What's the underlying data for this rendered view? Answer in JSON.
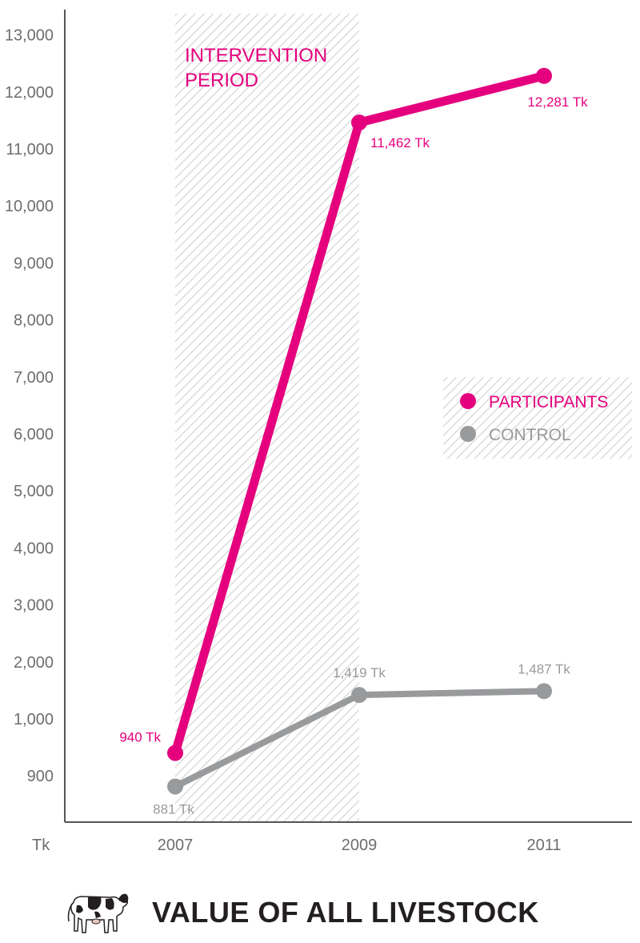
{
  "chart_data": {
    "type": "line",
    "title": "VALUE OF ALL LIVESTOCK",
    "ylabel": "Tk",
    "categories": [
      "2007",
      "2009",
      "2011"
    ],
    "yticks": [
      "13,000",
      "12,000",
      "11,000",
      "10,000",
      "9,000",
      "8,000",
      "7,000",
      "6,000",
      "5,000",
      "4,000",
      "3,000",
      "2,000",
      "1,000",
      "900"
    ],
    "shaded_region": {
      "label_line1": "INTERVENTION",
      "label_line2": "PERIOD",
      "from": "2007",
      "to": "2009"
    },
    "series": [
      {
        "name": "PARTICIPANTS",
        "color": "#e5007e",
        "values": [
          940,
          11462,
          12281
        ],
        "labels": [
          "940 Tk",
          "11,462 Tk",
          "12,281 Tk"
        ]
      },
      {
        "name": "CONTROL",
        "color": "#999a9c",
        "values": [
          881,
          1419,
          1487
        ],
        "labels": [
          "881 Tk",
          "1,419 Tk",
          "1,487 Tk"
        ]
      }
    ],
    "legend_position": "right",
    "grid": false
  },
  "colors": {
    "axis": "#555555",
    "tick_text": "#6d6e70",
    "title": "#231f20",
    "hatch": "#d0d0d0"
  },
  "icon": "cow-icon"
}
